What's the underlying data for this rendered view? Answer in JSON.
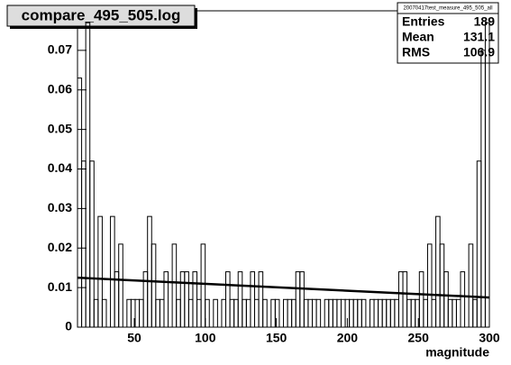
{
  "chart_data": {
    "type": "histogram",
    "title": "compare_495_505.log",
    "x_label": "magnitude",
    "bins": [
      10,
      12.9,
      15.8,
      18.7,
      21.6,
      24.5,
      27.4,
      30.3,
      33.2,
      36.1,
      39,
      41.9,
      44.8,
      47.7,
      50.6,
      53.5,
      56.4,
      59.3,
      62.2,
      65.1,
      68,
      70.9,
      73.8,
      76.7,
      79.6,
      82.5,
      85.4,
      88.3,
      91.2,
      94.1,
      97,
      99.9,
      102.8,
      105.7,
      108.6,
      111.5,
      114.4,
      117.3,
      120.2,
      123.1,
      126,
      128.9,
      131.8,
      134.7,
      137.6,
      140.5,
      143.4,
      146.3,
      149.2,
      152.1,
      155,
      157.9,
      160.8,
      163.7,
      166.6,
      169.5,
      172.4,
      175.3,
      178.2,
      181.1,
      184,
      186.9,
      189.8,
      192.7,
      195.6,
      198.5,
      201.4,
      204.3,
      207.2,
      210.1,
      213,
      215.9,
      218.8,
      221.7,
      224.6,
      227.5,
      230.4,
      233.3,
      236.2,
      239.1,
      242,
      244.9,
      247.8,
      250.7,
      253.6,
      256.5,
      259.4,
      262.3,
      265.2,
      268.1,
      271,
      273.9,
      276.8,
      279.7,
      282.6,
      285.5,
      288.4,
      291.3,
      294.2,
      297.1,
      300
    ],
    "values": [
      0.063,
      0.042,
      0.077,
      0.042,
      0.007,
      0.028,
      0.007,
      0,
      0.028,
      0.014,
      0.021,
      0,
      0.007,
      0.007,
      0.007,
      0.007,
      0.014,
      0.028,
      0.021,
      0.007,
      0.007,
      0.014,
      0,
      0.021,
      0.007,
      0.014,
      0.014,
      0.007,
      0.014,
      0.007,
      0.021,
      0.007,
      0,
      0.007,
      0,
      0.007,
      0.014,
      0.007,
      0.007,
      0.014,
      0.007,
      0.007,
      0.014,
      0.007,
      0.014,
      0.007,
      0,
      0.007,
      0.007,
      0,
      0.007,
      0.007,
      0.007,
      0.014,
      0.014,
      0.007,
      0.007,
      0.007,
      0.007,
      0,
      0.007,
      0.007,
      0.007,
      0.007,
      0.007,
      0.007,
      0.007,
      0.007,
      0.007,
      0.007,
      0,
      0.007,
      0.007,
      0.007,
      0.007,
      0.007,
      0.007,
      0.007,
      0.014,
      0.014,
      0.007,
      0.007,
      0.007,
      0.014,
      0.007,
      0.021,
      0.007,
      0.028,
      0.021,
      0.014,
      0.007,
      0.007,
      0.007,
      0.014,
      0,
      0.021,
      0.007,
      0.042,
      0.07,
      0.077
    ],
    "color": "#000000",
    "fit": {
      "x": [
        10,
        300
      ],
      "y": [
        0.0125,
        0.0075
      ]
    },
    "xlim": [
      10,
      300
    ],
    "xticks": [
      50,
      100,
      150,
      200,
      250,
      300
    ],
    "ylim": [
      0,
      0.08
    ],
    "yticks": [
      0,
      0.01,
      0.02,
      0.03,
      0.04,
      0.05,
      0.06,
      0.07
    ],
    "stats": {
      "title": "20070417test_measure_495_505_all",
      "rows": [
        {
          "label": "Entries",
          "value": 189
        },
        {
          "label": "Mean",
          "value": 131.1
        },
        {
          "label": "RMS",
          "value": 106.9
        }
      ]
    }
  }
}
